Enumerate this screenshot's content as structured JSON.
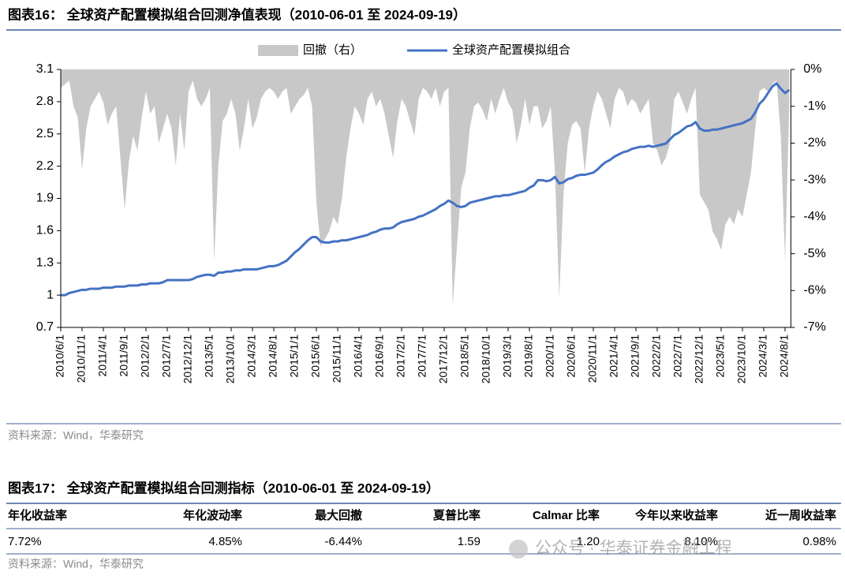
{
  "figure16": {
    "title": "图表16： 全球资产配置模拟组合回测净值表现（2010-06-01 至 2024-09-19）",
    "source": "资料来源：Wind，华泰研究"
  },
  "chart_data": {
    "type": "line",
    "grid": false,
    "legend": "top",
    "categories": [
      "2010/6/1",
      null,
      null,
      null,
      null,
      "2010/11/1",
      null,
      null,
      null,
      null,
      "2011/4/1",
      null,
      null,
      null,
      null,
      "2011/9/1",
      null,
      null,
      null,
      null,
      "2012/2/1",
      null,
      null,
      null,
      null,
      "2012/7/1",
      null,
      null,
      null,
      null,
      "2012/12/1",
      null,
      null,
      null,
      null,
      "2013/5/1",
      null,
      null,
      null,
      null,
      "2013/10/1",
      null,
      null,
      null,
      null,
      "2014/3/1",
      null,
      null,
      null,
      null,
      "2014/8/1",
      null,
      null,
      null,
      null,
      "2015/1/1",
      null,
      null,
      null,
      null,
      "2015/6/1",
      null,
      null,
      null,
      null,
      "2015/11/1",
      null,
      null,
      null,
      null,
      "2016/4/1",
      null,
      null,
      null,
      null,
      "2016/9/1",
      null,
      null,
      null,
      null,
      "2017/2/1",
      null,
      null,
      null,
      null,
      "2017/7/1",
      null,
      null,
      null,
      null,
      "2017/12/1",
      null,
      null,
      null,
      null,
      "2018/5/1",
      null,
      null,
      null,
      null,
      "2018/10/1",
      null,
      null,
      null,
      null,
      "2019/3/1",
      null,
      null,
      null,
      null,
      "2019/8/1",
      null,
      null,
      null,
      null,
      "2020/1/1",
      null,
      null,
      null,
      null,
      "2020/6/1",
      null,
      null,
      null,
      null,
      "2020/11/1",
      null,
      null,
      null,
      null,
      "2021/4/1",
      null,
      null,
      null,
      null,
      "2021/9/1",
      null,
      null,
      null,
      null,
      "2022/2/1",
      null,
      null,
      null,
      null,
      "2022/7/1",
      null,
      null,
      null,
      null,
      "2022/12/1",
      null,
      null,
      null,
      null,
      "2023/5/1",
      null,
      null,
      null,
      null,
      "2023/10/1",
      null,
      null,
      null,
      null,
      "2024/3/1",
      null,
      null,
      null,
      null,
      "2024/8/1",
      null
    ],
    "ylim": [
      0.7,
      3.1
    ],
    "yticks": [
      0.7,
      1.0,
      1.3,
      1.6,
      1.9,
      2.2,
      2.5,
      2.8,
      3.1
    ],
    "y2lim": [
      -7,
      0
    ],
    "y2ticks": [
      {
        "value": 0,
        "label": "0%"
      },
      {
        "value": -1,
        "label": "-1%"
      },
      {
        "value": -2,
        "label": "-2%"
      },
      {
        "value": -3,
        "label": "-3%"
      },
      {
        "value": -4,
        "label": "-4%"
      },
      {
        "value": -5,
        "label": "-5%"
      },
      {
        "value": -6,
        "label": "-6%"
      },
      {
        "value": -7,
        "label": "-7%"
      }
    ],
    "series": [
      {
        "name": "回撤（右）",
        "type": "area",
        "axis": "y2",
        "color": "#c8c8c8",
        "values": [
          -0.5,
          -0.4,
          -0.3,
          -1.0,
          -1.3,
          -2.7,
          -1.6,
          -1.0,
          -0.8,
          -0.6,
          -0.9,
          -1.5,
          -1.2,
          -1.0,
          -2.4,
          -3.8,
          -2.5,
          -1.8,
          -2.2,
          -1.3,
          -0.6,
          -1.2,
          -1.0,
          -2.0,
          -1.6,
          -1.2,
          -1.6,
          -2.6,
          -1.2,
          -2.2,
          -0.6,
          -0.3,
          -0.8,
          -1.0,
          -0.8,
          -0.5,
          -5.2,
          -2.6,
          -1.4,
          -1.2,
          -0.8,
          -1.2,
          -2.2,
          -1.6,
          -0.8,
          -1.6,
          -1.3,
          -0.8,
          -0.6,
          -0.5,
          -0.6,
          -0.8,
          -0.6,
          -0.5,
          -1.2,
          -1.0,
          -0.8,
          -0.7,
          -0.5,
          -1.0,
          -3.6,
          -4.8,
          -4.6,
          -4.4,
          -4.0,
          -4.2,
          -3.5,
          -2.4,
          -1.6,
          -1.0,
          -1.2,
          -1.5,
          -0.8,
          -0.6,
          -1.0,
          -0.8,
          -1.2,
          -1.8,
          -2.4,
          -1.4,
          -0.8,
          -1.0,
          -1.4,
          -1.8,
          -0.8,
          -0.5,
          -0.6,
          -0.8,
          -0.5,
          -1.0,
          -0.6,
          -0.5,
          -6.4,
          -4.8,
          -3.2,
          -2.8,
          -1.6,
          -1.0,
          -0.9,
          -1.1,
          -1.4,
          -0.8,
          -1.2,
          -0.8,
          -0.5,
          -0.9,
          -1.1,
          -2.0,
          -1.5,
          -0.8,
          -1.5,
          -1.0,
          -1.0,
          -1.6,
          -1.4,
          -1.0,
          -2.8,
          -6.2,
          -3.4,
          -2.0,
          -1.5,
          -1.4,
          -1.6,
          -2.8,
          -1.6,
          -1.0,
          -0.6,
          -0.8,
          -1.2,
          -1.6,
          -0.8,
          -0.5,
          -0.6,
          -1.0,
          -0.8,
          -0.9,
          -1.2,
          -1.0,
          -0.8,
          -2.0,
          -2.2,
          -2.6,
          -2.4,
          -2.0,
          -0.8,
          -0.6,
          -0.9,
          -1.2,
          -0.8,
          -0.5,
          -3.4,
          -3.6,
          -3.8,
          -4.4,
          -4.6,
          -4.9,
          -4.2,
          -4.0,
          -4.2,
          -3.8,
          -4.0,
          -3.4,
          -2.8,
          -1.6,
          -0.6,
          -0.5,
          -0.6,
          -0.4,
          -0.3,
          -1.8,
          -5.2,
          -1.0
        ]
      },
      {
        "name": "全球资产配置模拟组合",
        "type": "line",
        "color": "#4472c4",
        "values": [
          1.0,
          1.0,
          1.02,
          1.03,
          1.04,
          1.05,
          1.05,
          1.06,
          1.06,
          1.06,
          1.07,
          1.07,
          1.07,
          1.08,
          1.08,
          1.08,
          1.09,
          1.09,
          1.09,
          1.1,
          1.1,
          1.11,
          1.11,
          1.11,
          1.12,
          1.14,
          1.14,
          1.14,
          1.14,
          1.14,
          1.14,
          1.15,
          1.17,
          1.18,
          1.19,
          1.19,
          1.18,
          1.21,
          1.21,
          1.22,
          1.22,
          1.23,
          1.23,
          1.24,
          1.24,
          1.24,
          1.24,
          1.25,
          1.26,
          1.27,
          1.27,
          1.28,
          1.3,
          1.32,
          1.36,
          1.4,
          1.43,
          1.47,
          1.51,
          1.54,
          1.54,
          1.5,
          1.49,
          1.49,
          1.5,
          1.5,
          1.51,
          1.51,
          1.52,
          1.53,
          1.54,
          1.55,
          1.56,
          1.58,
          1.59,
          1.61,
          1.62,
          1.62,
          1.63,
          1.66,
          1.68,
          1.69,
          1.7,
          1.71,
          1.73,
          1.74,
          1.76,
          1.78,
          1.8,
          1.83,
          1.85,
          1.88,
          1.86,
          1.83,
          1.82,
          1.83,
          1.86,
          1.87,
          1.88,
          1.89,
          1.9,
          1.91,
          1.92,
          1.92,
          1.93,
          1.93,
          1.94,
          1.95,
          1.96,
          1.97,
          2.0,
          2.02,
          2.07,
          2.07,
          2.06,
          2.07,
          2.1,
          2.04,
          2.05,
          2.08,
          2.09,
          2.11,
          2.12,
          2.12,
          2.13,
          2.14,
          2.17,
          2.21,
          2.24,
          2.26,
          2.29,
          2.31,
          2.33,
          2.34,
          2.36,
          2.37,
          2.38,
          2.38,
          2.39,
          2.38,
          2.39,
          2.4,
          2.41,
          2.45,
          2.49,
          2.51,
          2.54,
          2.57,
          2.58,
          2.61,
          2.55,
          2.53,
          2.53,
          2.54,
          2.54,
          2.55,
          2.56,
          2.57,
          2.58,
          2.59,
          2.6,
          2.62,
          2.64,
          2.7,
          2.78,
          2.82,
          2.88,
          2.94,
          2.97,
          2.92,
          2.88,
          2.91
        ]
      }
    ]
  },
  "figure17": {
    "title": "图表17： 全球资产配置模拟组合回测指标（2010-06-01 至 2024-09-19）",
    "source": "资料来源：Wind，华泰研究"
  },
  "table": {
    "header": [
      "年化收益率",
      "年化波动率",
      "最大回撤",
      "夏普比率",
      "Calmar 比率",
      "今年以来收益率",
      "近一周收益率"
    ],
    "rows": [
      [
        "7.72%",
        "4.85%",
        "-6.44%",
        "1.59",
        "1.20",
        "8.10%",
        "0.98%"
      ]
    ]
  },
  "watermark": "公众号 · 华泰证券金融工程"
}
